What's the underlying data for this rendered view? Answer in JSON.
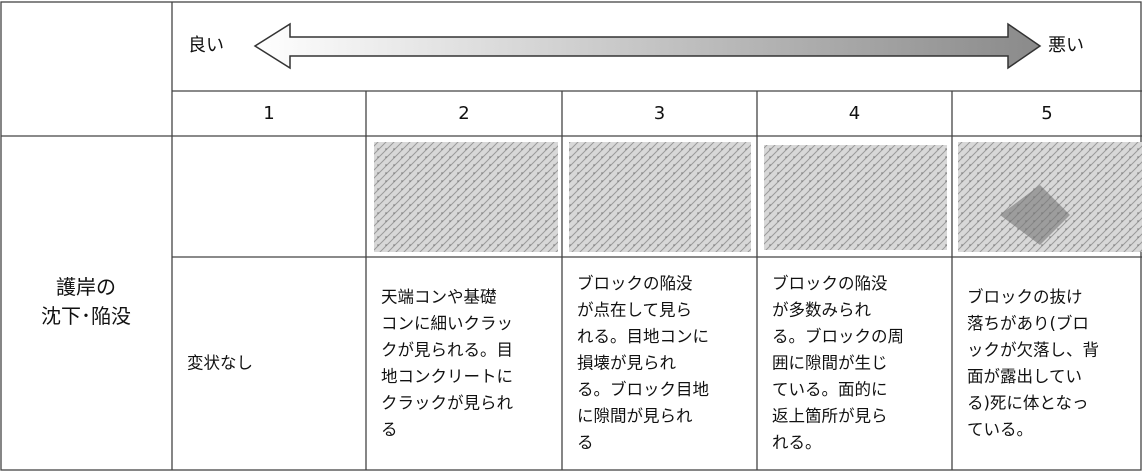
{
  "scale": {
    "good": "良い",
    "bad": "悪い"
  },
  "levels": [
    1,
    2,
    3,
    4,
    5
  ],
  "row_label": [
    "護岸の",
    "沈下･陥没"
  ],
  "descriptions": [
    [
      "変状なし"
    ],
    [
      "天端コンや基礎",
      "コンに細いクラッ",
      "クが見られる。目",
      "地コンクリートに",
      "クラックが見られ",
      "る"
    ],
    [
      "ブロックの陥没",
      "が点在して見ら",
      "れる。目地コンに",
      "損壊が見られ",
      "る。ブロック目地",
      "に隙間が見られ",
      "る"
    ],
    [
      "ブロックの陥没",
      "が多数みられ",
      "る。ブロックの周",
      "囲に隙間が生じ",
      "ている。面的に",
      "返上箇所が見ら",
      "れる。"
    ],
    [
      "ブロックの抜け",
      "落ちがあり(ブロ",
      "ックが欠落し、背",
      "面が露出してい",
      "る)死に体となっ",
      "ている。"
    ]
  ]
}
